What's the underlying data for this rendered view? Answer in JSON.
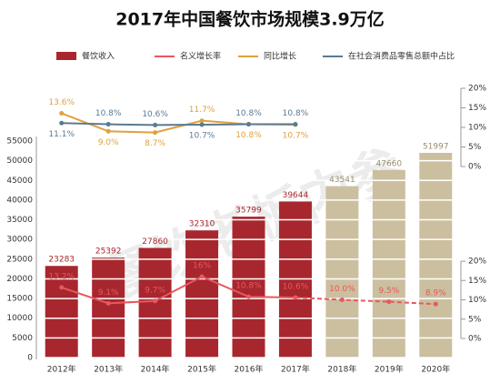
{
  "chart_data": {
    "type": "bar_line",
    "title": "2017年中国餐饮市场规模3.9万亿",
    "watermark": "餐饮老板内参",
    "categories": [
      "2012年",
      "2013年",
      "2014年",
      "2015年",
      "2016年",
      "2017年",
      "2018年",
      "2019年",
      "2020年"
    ],
    "ylim": [
      0,
      55000
    ],
    "yticks": [
      0,
      5000,
      10000,
      15000,
      20000,
      25000,
      30000,
      35000,
      40000,
      45000,
      50000,
      55000
    ],
    "y2lim": [
      0,
      20
    ],
    "y2ticks": [
      {
        "value": 0,
        "label": "0%"
      },
      {
        "value": 5,
        "label": "5%"
      },
      {
        "value": 10,
        "label": "10%"
      },
      {
        "value": 15,
        "label": "15%"
      },
      {
        "value": 20,
        "label": "20%"
      }
    ],
    "y3lim": [
      0,
      20
    ],
    "y3ticks": [
      {
        "value": 0,
        "label": "0%"
      },
      {
        "value": 5,
        "label": "5%"
      },
      {
        "value": 10,
        "label": "10%"
      },
      {
        "value": 15,
        "label": "15%"
      },
      {
        "value": 20,
        "label": "20%"
      }
    ],
    "grid": true,
    "series": [
      {
        "name": "餐饮收入",
        "type": "bar",
        "axis": "y",
        "color": "#a8272e",
        "colors": [
          "#a8272e",
          "#a8272e",
          "#a8272e",
          "#a8272e",
          "#a8272e",
          "#a8272e",
          "#cbbf9f",
          "#cbbf9f",
          "#cbbf9f"
        ],
        "values": [
          23283,
          25392,
          27860,
          32310,
          35799,
          39644,
          43541,
          47660,
          51997
        ]
      },
      {
        "name": "名义增长率",
        "type": "line",
        "axis": "y3",
        "color": "#e9575f",
        "dash_from_index": 5,
        "values": [
          13.2,
          9.1,
          9.7,
          16,
          10.8,
          10.6,
          10.0,
          9.5,
          8.9
        ],
        "value_labels": [
          "13.2%",
          "9.1%",
          "9.7%",
          "16%",
          "10.8%",
          "10.6%",
          "10.0%",
          "9.5%",
          "8.9%"
        ]
      },
      {
        "name": "同比增长",
        "type": "line",
        "axis": "y2",
        "color": "#e0a13c",
        "values": [
          13.6,
          9.0,
          8.7,
          11.7,
          10.8,
          10.7,
          null,
          null,
          null
        ],
        "value_labels": [
          "13.6%",
          "9.0%",
          "8.7%",
          "11.7%",
          "10.8%",
          "10.7%",
          null,
          null,
          null
        ]
      },
      {
        "name": "在社会消费品零售总额中占比",
        "type": "line",
        "axis": "y2",
        "color": "#5a7a93",
        "values": [
          11.1,
          10.8,
          10.6,
          10.7,
          10.8,
          10.8,
          null,
          null,
          null
        ],
        "value_labels": [
          "11.1%",
          "10.8%",
          "10.6%",
          "10.7%",
          "10.8%",
          "10.8%",
          null,
          null,
          null
        ]
      }
    ]
  }
}
